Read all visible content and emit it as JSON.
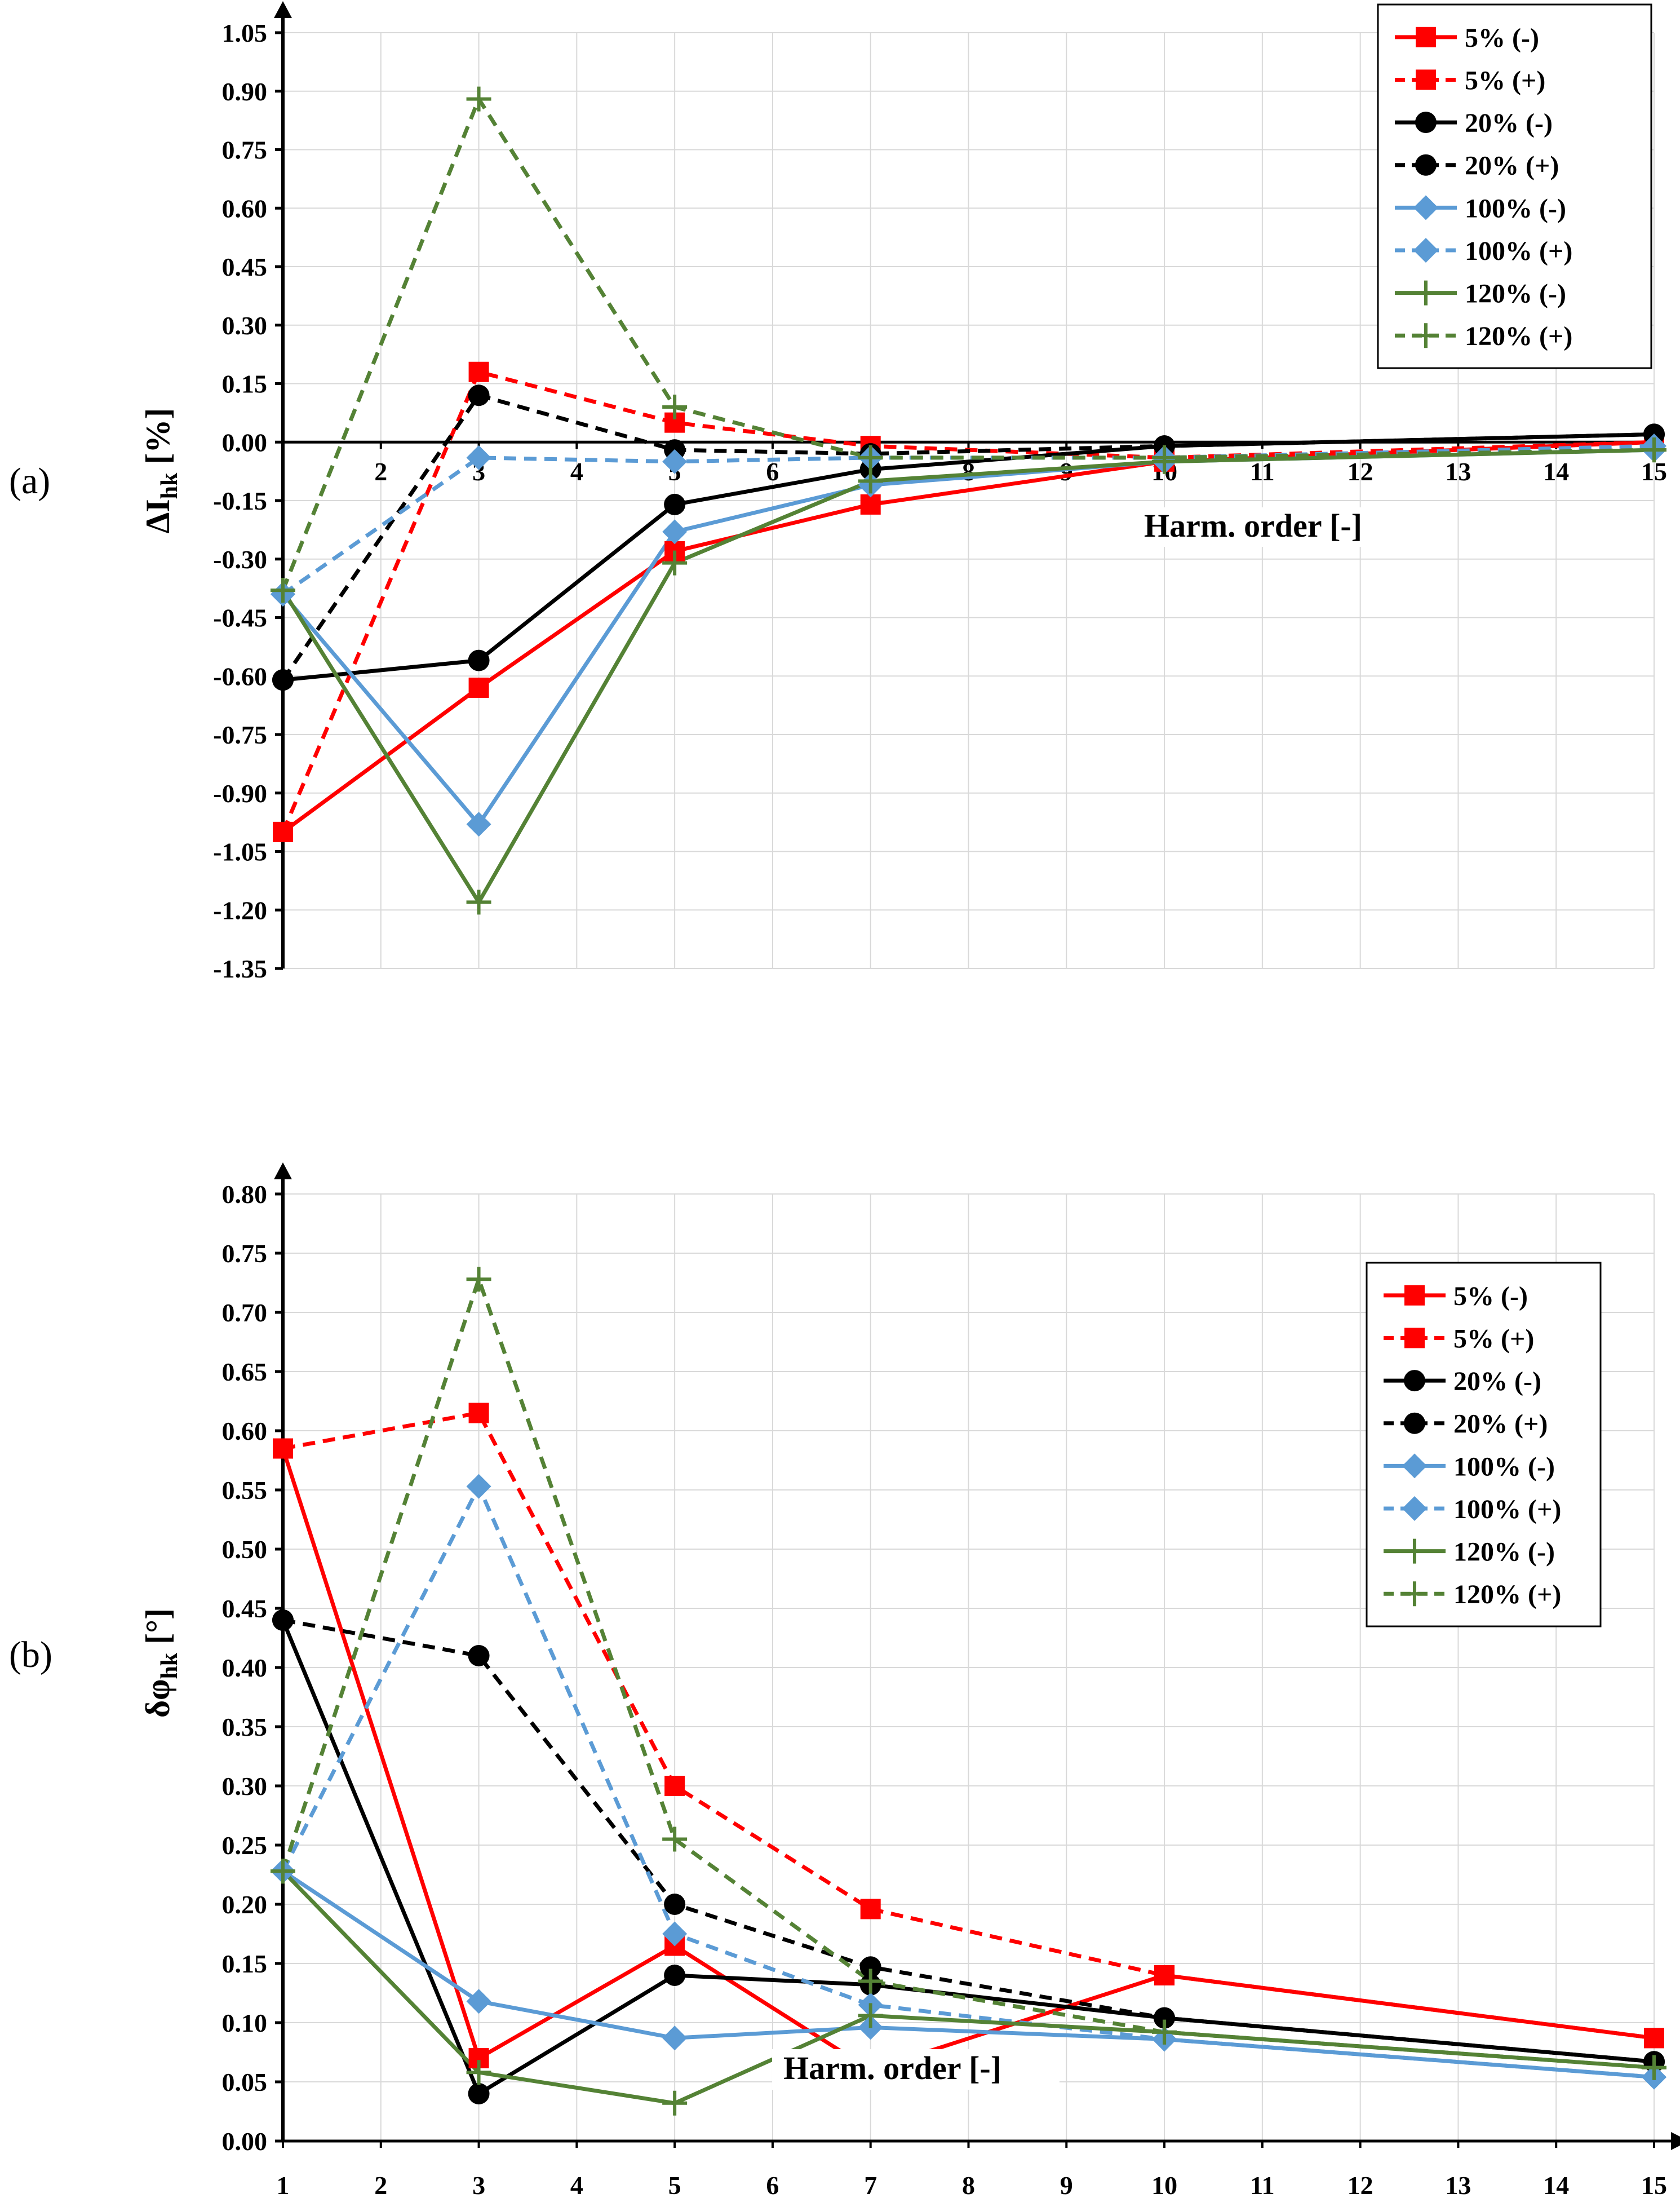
{
  "chart_data": [
    {
      "id": "a",
      "panel_label": "(a)",
      "type": "line",
      "ylabel_main": "ΔI",
      "ylabel_sub": "hk",
      "ylabel_tail": " [%]",
      "xlabel": "Harm. order [-]",
      "xlim": [
        1,
        15
      ],
      "ylim": [
        -1.35,
        1.05
      ],
      "x_ticks": [
        1,
        2,
        3,
        4,
        5,
        6,
        7,
        8,
        9,
        10,
        11,
        12,
        13,
        14,
        15
      ],
      "x_tick_labels": [
        "2",
        "3",
        "4",
        "5",
        "6",
        "7",
        "8",
        "9",
        "10",
        "11",
        "12",
        "13",
        "14",
        "15"
      ],
      "x_tick_label_values": [
        2,
        3,
        4,
        5,
        6,
        7,
        8,
        9,
        10,
        11,
        12,
        13,
        14,
        15
      ],
      "y_ticks": [
        1.05,
        0.9,
        0.75,
        0.6,
        0.45,
        0.3,
        0.15,
        0.0,
        -0.15,
        -0.3,
        -0.45,
        -0.6,
        -0.75,
        -0.9,
        -1.05,
        -1.2,
        -1.35
      ],
      "y_tick_labels": [
        "1.05",
        "0.90",
        "0.75",
        "0.60",
        "0.45",
        "0.30",
        "0.15",
        "0.00",
        "-0.15",
        "-0.30",
        "-0.45",
        "-0.60",
        "-0.75",
        "-0.90",
        "-1.05",
        "-1.20",
        "-1.35"
      ],
      "legend_position": "top-right",
      "series": [
        {
          "name": "5% (-)",
          "color": "#ff0000",
          "dash": "solid",
          "marker": "square",
          "x": [
            1,
            3,
            5,
            7,
            10,
            15
          ],
          "values": [
            -1.0,
            -0.63,
            -0.28,
            -0.16,
            -0.05,
            0.0
          ]
        },
        {
          "name": "5% (+)",
          "color": "#ff0000",
          "dash": "dashed",
          "marker": "square",
          "x": [
            1,
            3,
            5,
            7,
            10,
            15
          ],
          "values": [
            -1.0,
            0.18,
            0.05,
            -0.01,
            -0.04,
            0.0
          ]
        },
        {
          "name": "20% (-)",
          "color": "#000000",
          "dash": "solid",
          "marker": "circle",
          "x": [
            1,
            3,
            5,
            7,
            10,
            15
          ],
          "values": [
            -0.61,
            -0.56,
            -0.16,
            -0.07,
            -0.01,
            0.02
          ]
        },
        {
          "name": "20% (+)",
          "color": "#000000",
          "dash": "dashed",
          "marker": "circle",
          "x": [
            1,
            3,
            5,
            7,
            10,
            15
          ],
          "values": [
            -0.61,
            0.12,
            -0.02,
            -0.03,
            -0.01,
            0.02
          ]
        },
        {
          "name": "100% (-)",
          "color": "#5b9bd5",
          "dash": "solid",
          "marker": "diamond",
          "x": [
            1,
            3,
            5,
            7,
            10,
            15
          ],
          "values": [
            -0.39,
            -0.98,
            -0.23,
            -0.11,
            -0.05,
            -0.02
          ]
        },
        {
          "name": "100% (+)",
          "color": "#5b9bd5",
          "dash": "dashed",
          "marker": "diamond",
          "x": [
            1,
            3,
            5,
            7,
            10,
            15
          ],
          "values": [
            -0.39,
            -0.04,
            -0.05,
            -0.04,
            -0.04,
            -0.01
          ]
        },
        {
          "name": "120% (-)",
          "color": "#548235",
          "dash": "solid",
          "marker": "plus",
          "x": [
            1,
            3,
            5,
            7,
            10,
            15
          ],
          "values": [
            -0.38,
            -1.18,
            -0.31,
            -0.1,
            -0.05,
            -0.02
          ]
        },
        {
          "name": "120% (+)",
          "color": "#548235",
          "dash": "dashed",
          "marker": "plus",
          "x": [
            1,
            3,
            5,
            7,
            10,
            15
          ],
          "values": [
            -0.38,
            0.88,
            0.09,
            -0.04,
            -0.04,
            -0.02
          ]
        }
      ]
    },
    {
      "id": "b",
      "panel_label": "(b)",
      "type": "line",
      "ylabel_main": "δφ",
      "ylabel_sub": "hk",
      "ylabel_tail": " [°]",
      "xlabel": "Harm. order [-]",
      "xlim": [
        1,
        15
      ],
      "ylim": [
        0.0,
        0.8
      ],
      "x_ticks": [
        1,
        2,
        3,
        4,
        5,
        6,
        7,
        8,
        9,
        10,
        11,
        12,
        13,
        14,
        15
      ],
      "x_tick_labels": [
        "1",
        "2",
        "3",
        "4",
        "5",
        "6",
        "7",
        "8",
        "9",
        "10",
        "11",
        "12",
        "13",
        "14",
        "15"
      ],
      "x_tick_label_values": [
        1,
        2,
        3,
        4,
        5,
        6,
        7,
        8,
        9,
        10,
        11,
        12,
        13,
        14,
        15
      ],
      "y_ticks": [
        0.8,
        0.75,
        0.7,
        0.65,
        0.6,
        0.55,
        0.5,
        0.45,
        0.4,
        0.35,
        0.3,
        0.25,
        0.2,
        0.15,
        0.1,
        0.05,
        0.0
      ],
      "y_tick_labels": [
        "0.80",
        "0.75",
        "0.70",
        "0.65",
        "0.60",
        "0.55",
        "0.50",
        "0.45",
        "0.40",
        "0.35",
        "0.30",
        "0.25",
        "0.20",
        "0.15",
        "0.10",
        "0.05",
        "0.00"
      ],
      "legend_position": "right",
      "series": [
        {
          "name": "5% (-)",
          "color": "#ff0000",
          "dash": "solid",
          "marker": "square",
          "x": [
            1,
            3,
            5,
            7,
            10,
            15
          ],
          "values": [
            0.585,
            0.07,
            0.165,
            0.06,
            0.14,
            0.087
          ]
        },
        {
          "name": "5% (+)",
          "color": "#ff0000",
          "dash": "dashed",
          "marker": "square",
          "x": [
            1,
            3,
            5,
            7,
            10,
            15
          ],
          "values": [
            0.585,
            0.615,
            0.3,
            0.196,
            0.14,
            0.087
          ]
        },
        {
          "name": "20% (-)",
          "color": "#000000",
          "dash": "solid",
          "marker": "circle",
          "x": [
            1,
            3,
            5,
            7,
            10,
            15
          ],
          "values": [
            0.44,
            0.04,
            0.14,
            0.132,
            0.104,
            0.067
          ]
        },
        {
          "name": "20% (+)",
          "color": "#000000",
          "dash": "dashed",
          "marker": "circle",
          "x": [
            1,
            3,
            5,
            7,
            10,
            15
          ],
          "values": [
            0.44,
            0.41,
            0.2,
            0.147,
            0.104,
            0.067
          ]
        },
        {
          "name": "100% (-)",
          "color": "#5b9bd5",
          "dash": "solid",
          "marker": "diamond",
          "x": [
            1,
            3,
            5,
            7,
            10,
            15
          ],
          "values": [
            0.228,
            0.118,
            0.087,
            0.096,
            0.086,
            0.054
          ]
        },
        {
          "name": "100% (+)",
          "color": "#5b9bd5",
          "dash": "dashed",
          "marker": "diamond",
          "x": [
            1,
            3,
            5,
            7,
            10,
            15
          ],
          "values": [
            0.228,
            0.553,
            0.175,
            0.115,
            0.086,
            0.054
          ]
        },
        {
          "name": "120% (-)",
          "color": "#548235",
          "dash": "solid",
          "marker": "plus",
          "x": [
            1,
            3,
            5,
            7,
            10,
            15
          ],
          "values": [
            0.228,
            0.058,
            0.032,
            0.106,
            0.092,
            0.062
          ]
        },
        {
          "name": "120% (+)",
          "color": "#548235",
          "dash": "dashed",
          "marker": "plus",
          "x": [
            1,
            3,
            5,
            7,
            10,
            15
          ],
          "values": [
            0.228,
            0.728,
            0.255,
            0.135,
            0.092,
            0.062
          ]
        }
      ]
    }
  ]
}
